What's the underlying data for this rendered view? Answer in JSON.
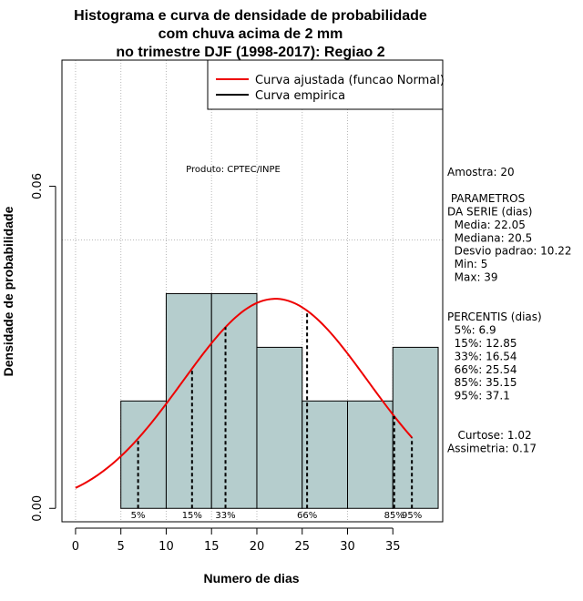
{
  "chart_data": {
    "type": "histogram",
    "title_lines": [
      "Histograma e curva de densidade de probabilidade",
      "com chuva acima de 2 mm",
      "no trimestre DJF (1998-2017): Regiao 2"
    ],
    "xlabel": "Numero de dias",
    "ylabel": "Densidade de probabilidade",
    "xlim": [
      -1.5,
      40.5
    ],
    "ylim": [
      -0.0025,
      0.0835
    ],
    "x_ticks": [
      0,
      5,
      10,
      15,
      20,
      25,
      30,
      35
    ],
    "x_tick_labels": [
      "0",
      "5",
      "10",
      "15",
      "20",
      "25",
      "30",
      "35"
    ],
    "y_ticks": [
      0.0,
      0.06
    ],
    "y_tick_labels": [
      "0.00",
      "0.06"
    ],
    "grid_x": [
      0,
      5,
      10,
      15,
      20,
      25,
      30,
      35
    ],
    "grid_y": [
      0.05
    ],
    "bins": [
      {
        "x0": 5,
        "x1": 10,
        "density": 0.02
      },
      {
        "x0": 10,
        "x1": 15,
        "density": 0.04
      },
      {
        "x0": 15,
        "x1": 20,
        "density": 0.04
      },
      {
        "x0": 20,
        "x1": 25,
        "density": 0.03
      },
      {
        "x0": 25,
        "x1": 30,
        "density": 0.02
      },
      {
        "x0": 30,
        "x1": 35,
        "density": 0.02
      },
      {
        "x0": 35,
        "x1": 40,
        "density": 0.03
      }
    ],
    "bar_color": "#b5cdcd",
    "curve": {
      "name": "Curva ajustada (funcao Normal)",
      "mean": 22.05,
      "sd": 10.22,
      "x_range": [
        0,
        37.1
      ],
      "color": "#ee0000"
    },
    "empirical": {
      "name": "Curva empirica",
      "color": "#000000"
    },
    "percentile_lines": [
      {
        "label": "5%",
        "x": 6.9
      },
      {
        "label": "15%",
        "x": 12.85
      },
      {
        "label": "33%",
        "x": 16.54
      },
      {
        "label": "66%",
        "x": 25.54
      },
      {
        "label": "85%",
        "x": 35.15
      },
      {
        "label": "95%",
        "x": 37.1
      }
    ],
    "product_note": "Produto: CPTEC/INPE",
    "legend": [
      {
        "label": "Curva ajustada (funcao Normal)",
        "color": "#ee0000"
      },
      {
        "label": "Curva empirica",
        "color": "#000000"
      }
    ],
    "legend_position": "top-right",
    "side_panel": [
      "Amostra: 20",
      "",
      " PARAMETROS",
      "DA SERIE (dias)",
      "  Media: 22.05",
      "  Mediana: 20.5",
      "  Desvio padrao: 10.22",
      "  Min: 5",
      "  Max: 39",
      "",
      "",
      "PERCENTIS (dias)",
      "  5%: 6.9",
      "  15%: 12.85",
      "  33%: 16.54",
      "  66%: 25.54",
      "  85%: 35.15",
      "  95%: 37.1",
      "",
      "",
      "   Curtose: 1.02",
      "Assimetria: 0.17"
    ]
  }
}
